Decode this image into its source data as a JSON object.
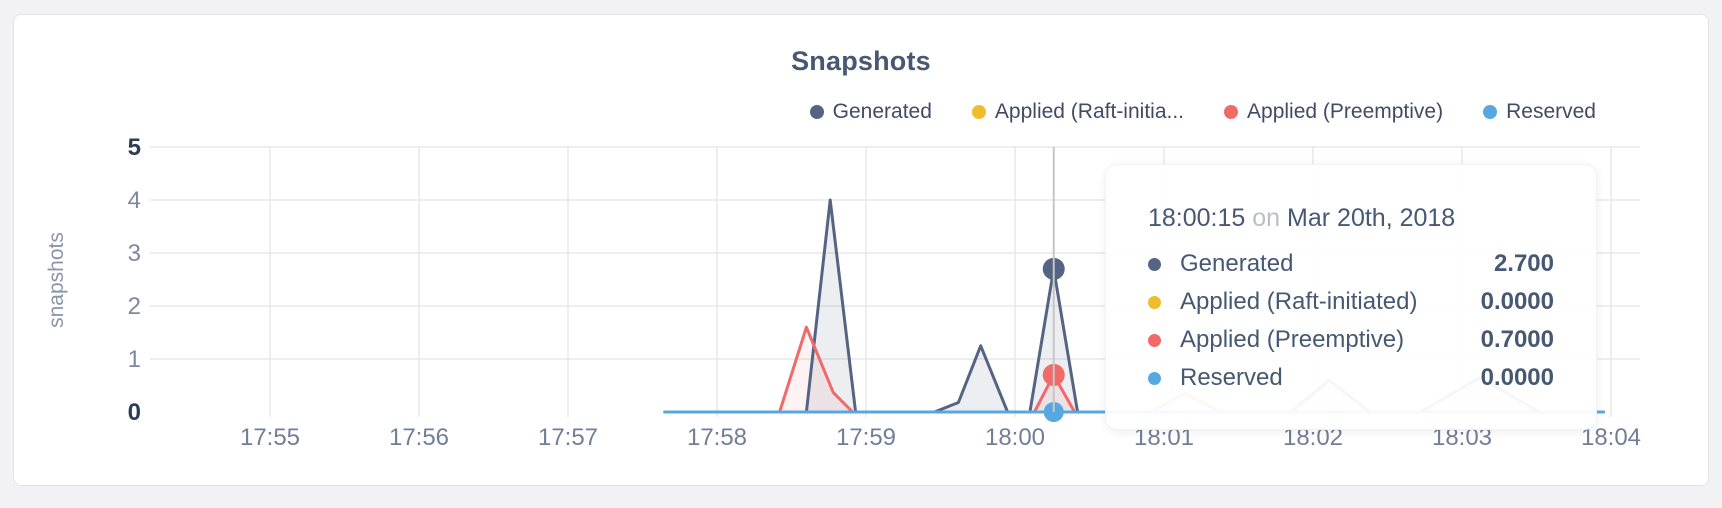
{
  "card": {
    "background": "#ffffff"
  },
  "colors": {
    "generated": "#566483",
    "raft": "#f0bc2e",
    "preemptive": "#f16a6a",
    "reserved": "#57a8e2",
    "grid": "#e8e8e8",
    "hover_line": "#c6c6c6",
    "axis_tick": "#7d89a0",
    "axis_tick_bold": "#2d3c59",
    "x_tick": "#727e98",
    "axis_label": "#8a93a8",
    "title": "#475872"
  },
  "chart_data": {
    "type": "area",
    "title": "Snapshots",
    "xlabel": "",
    "ylabel": "snapshots",
    "ylim": [
      0,
      5
    ],
    "y_ticks": [
      0,
      1,
      2,
      3,
      4,
      5
    ],
    "x_ticks": [
      "17:55",
      "17:56",
      "17:57",
      "17:58",
      "17:59",
      "18:00",
      "18:01",
      "18:02",
      "18:03",
      "18:04"
    ],
    "grid": true,
    "legend_position": "top-right",
    "legend": [
      {
        "label": "Generated",
        "series": "Generated",
        "color": "#566483"
      },
      {
        "label": "Applied (Raft-initia...",
        "series": "Applied (Raft-initiated)",
        "color": "#f0bc2e"
      },
      {
        "label": "Applied (Preemptive)",
        "series": "Applied (Preemptive)",
        "color": "#f16a6a"
      },
      {
        "label": "Reserved",
        "series": "Reserved",
        "color": "#57a8e2"
      }
    ],
    "x_unit": "minutes after 17:55",
    "series": [
      {
        "name": "Generated",
        "color": "#566483",
        "fill": "rgba(86,100,131,0.11)",
        "points": [
          [
            2.65,
            0
          ],
          [
            3.6,
            0
          ],
          [
            3.76,
            4.0
          ],
          [
            3.93,
            0
          ],
          [
            4.46,
            0
          ],
          [
            4.62,
            0.18
          ],
          [
            4.77,
            1.25
          ],
          [
            4.95,
            0
          ],
          [
            5.1,
            0
          ],
          [
            5.26,
            2.7
          ],
          [
            5.42,
            0
          ],
          [
            6.85,
            0
          ],
          [
            7.11,
            0.6
          ],
          [
            7.38,
            0
          ],
          [
            7.72,
            0
          ],
          [
            8.12,
            0.65
          ],
          [
            8.52,
            0
          ],
          [
            8.95,
            0
          ]
        ]
      },
      {
        "name": "Applied (Raft-initiated)",
        "color": "#f0bc2e",
        "fill": "none",
        "points": [
          [
            2.65,
            0
          ],
          [
            8.95,
            0
          ]
        ]
      },
      {
        "name": "Applied (Preemptive)",
        "color": "#f16a6a",
        "fill": "rgba(241,106,106,0.09)",
        "points": [
          [
            2.65,
            0
          ],
          [
            3.42,
            0
          ],
          [
            3.6,
            1.6
          ],
          [
            3.78,
            0.37
          ],
          [
            3.91,
            0
          ],
          [
            5.13,
            0
          ],
          [
            5.26,
            0.7
          ],
          [
            5.4,
            0
          ],
          [
            5.91,
            0
          ],
          [
            6.14,
            0.35
          ],
          [
            6.38,
            0
          ],
          [
            8.95,
            0
          ]
        ]
      },
      {
        "name": "Reserved",
        "color": "#57a8e2",
        "fill": "none",
        "points": [
          [
            2.65,
            0
          ],
          [
            8.95,
            0
          ]
        ]
      }
    ],
    "hover": {
      "t": 5.26,
      "time": "18:00:15",
      "date": "Mar 20th, 2018",
      "values": [
        {
          "series": "Generated",
          "value": 2.7,
          "color": "#566483",
          "r": 11
        },
        {
          "series": "Applied (Raft-initiated)",
          "value": 0.0,
          "color": "#f0bc2e",
          "r": 9
        },
        {
          "series": "Applied (Preemptive)",
          "value": 0.7,
          "color": "#f16a6a",
          "r": 11
        },
        {
          "series": "Reserved",
          "value": 0.0,
          "color": "#57a8e2",
          "r": 10
        }
      ]
    }
  },
  "tooltip": {
    "time": "18:00:15",
    "conj": "on",
    "date": "Mar 20th, 2018",
    "rows": [
      {
        "label": "Generated",
        "value": "2.700",
        "color": "#566483"
      },
      {
        "label": "Applied (Raft-initiated)",
        "value": "0.0000",
        "color": "#f0bc2e"
      },
      {
        "label": "Applied (Preemptive)",
        "value": "0.7000",
        "color": "#f16a6a"
      },
      {
        "label": "Reserved",
        "value": "0.0000",
        "color": "#57a8e2"
      }
    ]
  }
}
